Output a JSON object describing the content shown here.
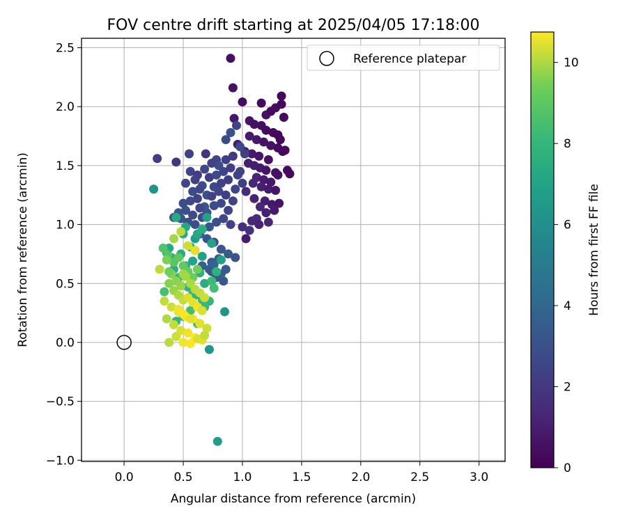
{
  "chart_data": {
    "type": "scatter",
    "title": "FOV centre drift starting at 2025/04/05 17:18:00",
    "xlabel": "Angular distance from reference (arcmin)",
    "ylabel": "Rotation from reference (arcmin)",
    "xlim": [
      -0.36,
      3.22
    ],
    "ylim": [
      -1.01,
      2.58
    ],
    "xticks": [
      0.0,
      0.5,
      1.0,
      1.5,
      2.0,
      2.5,
      3.0
    ],
    "xtick_labels": [
      "0.0",
      "0.5",
      "1.0",
      "1.5",
      "2.0",
      "2.5",
      "3.0"
    ],
    "yticks": [
      -1.0,
      -0.5,
      0.0,
      0.5,
      1.0,
      1.5,
      2.0,
      2.5
    ],
    "ytick_labels": [
      "−1.0",
      "−0.5",
      "0.0",
      "0.5",
      "1.0",
      "1.5",
      "2.0",
      "2.5"
    ],
    "grid": true,
    "legend": {
      "position": "top-right",
      "label": "Reference platepar"
    },
    "reference_point": {
      "x": 0.0,
      "y": 0.0
    },
    "colorbar": {
      "label": "Hours from first FF file",
      "min": 0,
      "max": 10.75,
      "colormap": "viridis",
      "ticks": [
        0,
        2,
        4,
        6,
        8,
        10
      ],
      "tick_labels": [
        "0",
        "2",
        "4",
        "6",
        "8",
        "10"
      ]
    },
    "series": [
      {
        "x": [
          0.9,
          0.92,
          1.0,
          1.16,
          1.33,
          1.2,
          1.24,
          1.28,
          1.33,
          1.35,
          0.93,
          1.06,
          1.1,
          1.16,
          1.2,
          1.26,
          1.3,
          1.32,
          1.06,
          1.12,
          1.18,
          1.24,
          1.3,
          1.36,
          0.96,
          1.02,
          1.08,
          1.14,
          1.22,
          1.34,
          1.05,
          1.1,
          1.15,
          1.2,
          1.28,
          1.38,
          1.4,
          1.12,
          1.18,
          1.24,
          1.3,
          1.09,
          1.16,
          1.22,
          1.28,
          1.03,
          1.1,
          1.19,
          1.25,
          1.15,
          1.2,
          1.27,
          1.31,
          1.12,
          1.22,
          1.0,
          1.08,
          1.14,
          1.06,
          1.03
        ],
        "y": [
          2.41,
          2.16,
          2.04,
          2.03,
          2.09,
          1.93,
          1.96,
          1.99,
          2.02,
          1.91,
          1.9,
          1.88,
          1.85,
          1.84,
          1.8,
          1.78,
          1.76,
          1.72,
          1.75,
          1.72,
          1.7,
          1.67,
          1.65,
          1.63,
          1.68,
          1.62,
          1.6,
          1.58,
          1.55,
          1.62,
          1.52,
          1.5,
          1.48,
          1.46,
          1.44,
          1.46,
          1.43,
          1.4,
          1.38,
          1.36,
          1.42,
          1.35,
          1.32,
          1.3,
          1.29,
          1.28,
          1.22,
          1.2,
          1.17,
          1.15,
          1.1,
          1.12,
          1.18,
          1.05,
          1.02,
          0.98,
          1.03,
          1.0,
          0.95,
          0.88
        ],
        "t": [
          0.5,
          0.6,
          0.4,
          0.3,
          0.2,
          0.5,
          0.3,
          0.4,
          0.2,
          0.3,
          0.8,
          0.7,
          0.6,
          0.5,
          0.4,
          0.3,
          0.2,
          0.2,
          0.9,
          0.8,
          0.7,
          0.6,
          0.4,
          0.3,
          1.0,
          0.9,
          0.8,
          0.7,
          0.6,
          0.3,
          1.1,
          1.0,
          0.9,
          0.7,
          0.6,
          0.4,
          0.3,
          1.2,
          1.0,
          0.8,
          0.6,
          1.3,
          1.1,
          0.9,
          0.7,
          1.4,
          1.2,
          1.0,
          0.8,
          1.3,
          1.1,
          0.9,
          0.7,
          1.5,
          1.3,
          1.6,
          1.4,
          1.2,
          1.7,
          0.9
        ]
      },
      {
        "x": [
          0.28,
          0.44,
          0.55,
          0.69,
          0.78,
          0.86,
          0.9,
          0.95,
          0.98,
          1.02,
          0.56,
          0.62,
          0.68,
          0.74,
          0.8,
          0.86,
          0.92,
          0.98,
          0.52,
          0.6,
          0.66,
          0.72,
          0.78,
          0.84,
          0.9,
          0.96,
          0.58,
          0.64,
          0.7,
          0.76,
          0.82,
          0.88,
          0.94,
          1.0,
          0.5,
          0.56,
          0.62,
          0.68,
          0.74,
          0.8,
          0.86,
          0.92,
          0.46,
          0.52,
          0.58,
          0.64,
          0.7,
          0.76,
          0.82,
          0.88,
          0.42,
          0.48,
          0.54,
          0.6,
          0.66,
          0.72,
          0.78,
          0.84,
          0.9,
          0.64,
          0.7,
          0.76,
          0.82,
          0.88,
          0.94,
          0.72,
          0.78,
          0.84,
          0.66,
          0.74,
          0.82,
          0.86,
          0.8,
          0.76,
          0.74
        ],
        "y": [
          1.56,
          1.53,
          1.6,
          1.6,
          1.55,
          1.72,
          1.78,
          1.84,
          1.66,
          1.6,
          1.45,
          1.42,
          1.47,
          1.52,
          1.5,
          1.55,
          1.58,
          1.45,
          1.35,
          1.38,
          1.33,
          1.4,
          1.42,
          1.45,
          1.48,
          1.42,
          1.28,
          1.3,
          1.25,
          1.32,
          1.35,
          1.38,
          1.3,
          1.35,
          1.18,
          1.2,
          1.22,
          1.15,
          1.24,
          1.28,
          1.25,
          1.2,
          1.1,
          1.12,
          1.08,
          1.14,
          1.1,
          1.16,
          1.18,
          1.12,
          1.06,
          1.05,
          1.02,
          1.0,
          1.06,
          0.98,
          1.02,
          1.05,
          1.0,
          0.92,
          0.88,
          0.85,
          0.79,
          0.75,
          0.72,
          0.62,
          0.55,
          0.52,
          0.65,
          0.68,
          0.58,
          0.62,
          0.71,
          0.66,
          0.6
        ],
        "t": [
          2.2,
          2.0,
          2.4,
          1.8,
          2.6,
          2.8,
          3.0,
          2.5,
          2.7,
          2.3,
          2.5,
          2.2,
          2.6,
          2.4,
          2.8,
          2.3,
          2.1,
          2.5,
          2.6,
          2.4,
          2.9,
          2.2,
          2.7,
          2.5,
          2.3,
          2.4,
          2.8,
          2.6,
          3.0,
          2.7,
          2.4,
          2.2,
          2.6,
          2.3,
          2.9,
          2.7,
          2.5,
          3.1,
          2.4,
          2.6,
          2.3,
          2.5,
          3.2,
          3.0,
          2.8,
          2.6,
          3.1,
          2.9,
          2.7,
          2.5,
          3.3,
          3.1,
          2.9,
          3.0,
          2.8,
          3.2,
          3.0,
          2.6,
          2.4,
          3.4,
          3.2,
          3.0,
          3.3,
          3.5,
          3.2,
          3.6,
          3.4,
          3.3,
          3.7,
          3.5,
          3.8,
          3.4,
          3.6,
          3.9,
          3.5
        ]
      },
      {
        "x": [
          0.25,
          0.85,
          0.79,
          0.72,
          0.82,
          0.66,
          0.74,
          0.6,
          0.52,
          0.62,
          0.7,
          0.56,
          0.48,
          0.58,
          0.66,
          0.42,
          0.38,
          0.44,
          0.5,
          0.64,
          0.68,
          0.54,
          0.6,
          0.46,
          0.52,
          0.4,
          0.36,
          0.72,
          0.78,
          0.68,
          0.58,
          0.74,
          0.44,
          0.62,
          0.5,
          0.56,
          0.66,
          0.34,
          0.6,
          0.76
        ],
        "y": [
          1.3,
          0.26,
          -0.84,
          -0.06,
          0.7,
          0.73,
          0.84,
          0.88,
          0.98,
          0.92,
          1.06,
          0.81,
          0.75,
          0.69,
          0.96,
          0.62,
          0.8,
          1.06,
          0.92,
          0.59,
          0.5,
          0.47,
          0.4,
          0.55,
          0.65,
          0.72,
          0.76,
          0.35,
          0.6,
          0.3,
          0.41,
          0.52,
          0.18,
          0.16,
          0.22,
          0.27,
          0.36,
          0.43,
          0.78,
          0.46
        ],
        "t": [
          6.2,
          6.3,
          6.6,
          6.4,
          6.8,
          6.9,
          7.0,
          6.7,
          7.1,
          7.2,
          6.9,
          7.3,
          7.4,
          7.0,
          7.5,
          7.6,
          7.2,
          7.3,
          7.4,
          7.7,
          7.5,
          7.8,
          7.6,
          7.9,
          7.4,
          7.6,
          7.7,
          8.0,
          7.8,
          8.1,
          7.9,
          8.2,
          8.0,
          8.3,
          8.1,
          8.4,
          8.2,
          8.5,
          8.3,
          8.4
        ]
      },
      {
        "x": [
          0.33,
          0.37,
          0.42,
          0.46,
          0.5,
          0.54,
          0.58,
          0.62,
          0.36,
          0.4,
          0.44,
          0.48,
          0.52,
          0.56,
          0.6,
          0.64,
          0.68,
          0.38,
          0.42,
          0.46,
          0.5,
          0.54,
          0.58,
          0.62,
          0.66,
          0.34,
          0.4,
          0.46,
          0.52,
          0.58,
          0.64,
          0.7,
          0.36,
          0.42,
          0.48,
          0.54,
          0.6,
          0.66,
          0.44,
          0.5,
          0.56,
          0.62,
          0.68,
          0.38,
          0.42,
          0.48,
          0.54,
          0.6,
          0.46,
          0.5,
          0.56,
          0.38,
          0.44,
          0.5,
          0.3
        ],
        "y": [
          0.8,
          0.74,
          0.68,
          0.72,
          0.65,
          0.6,
          0.55,
          0.62,
          0.7,
          0.58,
          0.52,
          0.48,
          0.56,
          0.5,
          0.45,
          0.42,
          0.38,
          0.5,
          0.44,
          0.4,
          0.36,
          0.38,
          0.34,
          0.3,
          0.27,
          0.35,
          0.3,
          0.26,
          0.22,
          0.2,
          0.16,
          0.12,
          0.2,
          0.15,
          0.1,
          0.08,
          0.04,
          0.02,
          0.05,
          0.0,
          -0.01,
          0.03,
          0.06,
          0.0,
          0.88,
          0.94,
          0.82,
          0.78,
          0.28,
          0.24,
          0.2,
          0.6,
          0.52,
          0.58,
          0.62
        ],
        "t": [
          8.7,
          8.8,
          8.9,
          9.0,
          9.1,
          9.2,
          9.3,
          9.4,
          9.5,
          9.6,
          9.7,
          9.8,
          9.9,
          10.0,
          10.1,
          10.2,
          10.3,
          9.6,
          9.8,
          10.0,
          10.2,
          10.4,
          10.5,
          10.6,
          10.4,
          10.2,
          10.3,
          10.5,
          10.6,
          10.7,
          10.5,
          10.3,
          10.0,
          10.2,
          10.4,
          10.6,
          10.7,
          10.5,
          10.3,
          10.6,
          10.7,
          10.4,
          10.2,
          10.1,
          9.9,
          10.1,
          10.3,
          10.5,
          10.6,
          10.7,
          10.5,
          9.4,
          9.7,
          9.9,
          10.1
        ]
      }
    ]
  }
}
